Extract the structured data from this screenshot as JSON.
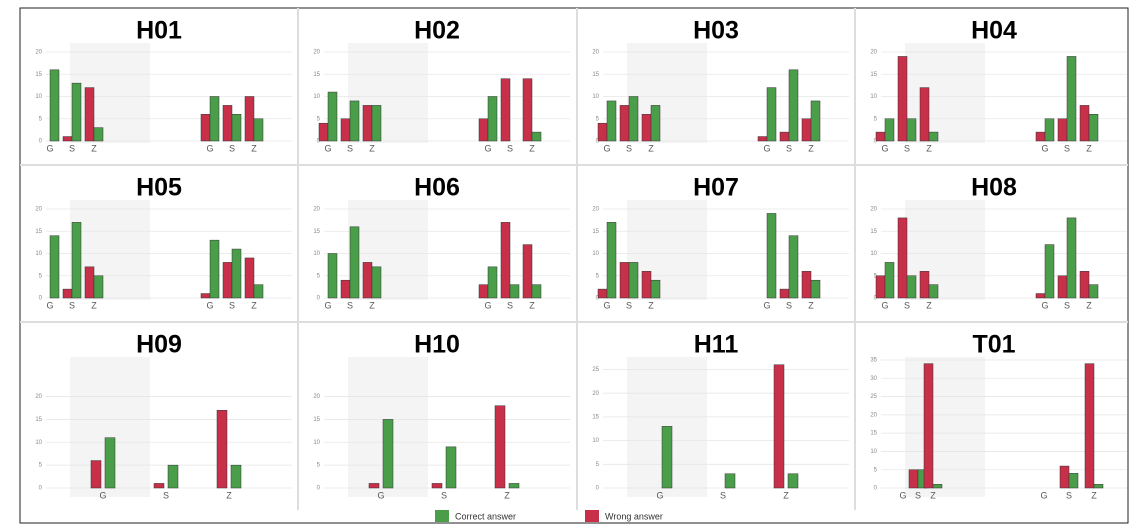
{
  "chart_data": [
    {
      "type": "bar",
      "title": "H01",
      "categories": [
        "G",
        "S",
        "Z",
        "G",
        "S",
        "Z"
      ],
      "ylim": [
        0,
        20
      ],
      "yticks": [
        0,
        5,
        10,
        15,
        20
      ],
      "grid": true,
      "series": [
        {
          "name": "Wrong answer",
          "color": "#c8304a",
          "values": [
            0,
            1,
            12,
            6,
            8,
            10
          ]
        },
        {
          "name": "Correct answer",
          "color": "#4a9e4a",
          "values": [
            16,
            13,
            3,
            10,
            6,
            5
          ]
        }
      ]
    },
    {
      "type": "bar",
      "title": "H02",
      "categories": [
        "G",
        "S",
        "Z",
        "G",
        "S",
        "Z"
      ],
      "ylim": [
        0,
        20
      ],
      "yticks": [
        0,
        5,
        10,
        15,
        20
      ],
      "grid": true,
      "series": [
        {
          "name": "Wrong answer",
          "color": "#c8304a",
          "values": [
            4,
            5,
            8,
            5,
            14,
            14
          ]
        },
        {
          "name": "Correct answer",
          "color": "#4a9e4a",
          "values": [
            11,
            9,
            8,
            10,
            0,
            2
          ]
        }
      ]
    },
    {
      "type": "bar",
      "title": "H03",
      "categories": [
        "G",
        "S",
        "Z",
        "G",
        "S",
        "Z"
      ],
      "ylim": [
        0,
        20
      ],
      "yticks": [
        0,
        5,
        10,
        15,
        20
      ],
      "grid": true,
      "series": [
        {
          "name": "Wrong answer",
          "color": "#c8304a",
          "values": [
            4,
            8,
            6,
            1,
            2,
            5
          ]
        },
        {
          "name": "Correct answer",
          "color": "#4a9e4a",
          "values": [
            9,
            10,
            8,
            12,
            16,
            9
          ]
        }
      ]
    },
    {
      "type": "bar",
      "title": "H04",
      "categories": [
        "G",
        "S",
        "Z",
        "G",
        "S",
        "Z"
      ],
      "ylim": [
        0,
        20
      ],
      "yticks": [
        0,
        5,
        10,
        15,
        20
      ],
      "grid": true,
      "series": [
        {
          "name": "Wrong answer",
          "color": "#c8304a",
          "values": [
            2,
            19,
            12,
            2,
            5,
            8
          ]
        },
        {
          "name": "Correct answer",
          "color": "#4a9e4a",
          "values": [
            5,
            5,
            2,
            5,
            19,
            6
          ]
        }
      ]
    },
    {
      "type": "bar",
      "title": "H05",
      "categories": [
        "G",
        "S",
        "Z",
        "G",
        "S",
        "Z"
      ],
      "ylim": [
        0,
        20
      ],
      "yticks": [
        0,
        5,
        10,
        15,
        20
      ],
      "grid": true,
      "series": [
        {
          "name": "Wrong answer",
          "color": "#c8304a",
          "values": [
            0,
            2,
            7,
            1,
            8,
            9
          ]
        },
        {
          "name": "Correct answer",
          "color": "#4a9e4a",
          "values": [
            14,
            17,
            5,
            13,
            11,
            3
          ]
        }
      ]
    },
    {
      "type": "bar",
      "title": "H06",
      "categories": [
        "G",
        "S",
        "Z",
        "G",
        "S",
        "Z"
      ],
      "ylim": [
        0,
        20
      ],
      "yticks": [
        0,
        5,
        10,
        15,
        20
      ],
      "grid": true,
      "series": [
        {
          "name": "Wrong answer",
          "color": "#c8304a",
          "values": [
            0,
            4,
            8,
            3,
            17,
            12
          ]
        },
        {
          "name": "Correct answer",
          "color": "#4a9e4a",
          "values": [
            10,
            16,
            7,
            7,
            3,
            3
          ]
        }
      ]
    },
    {
      "type": "bar",
      "title": "H07",
      "categories": [
        "G",
        "S",
        "Z",
        "G",
        "S",
        "Z"
      ],
      "ylim": [
        0,
        20
      ],
      "yticks": [
        0,
        5,
        10,
        15,
        20
      ],
      "grid": true,
      "series": [
        {
          "name": "Wrong answer",
          "color": "#c8304a",
          "values": [
            2,
            8,
            6,
            0,
            2,
            6
          ]
        },
        {
          "name": "Correct answer",
          "color": "#4a9e4a",
          "values": [
            17,
            8,
            4,
            19,
            14,
            4
          ]
        }
      ]
    },
    {
      "type": "bar",
      "title": "H08",
      "categories": [
        "G",
        "S",
        "Z",
        "G",
        "S",
        "Z"
      ],
      "ylim": [
        0,
        20
      ],
      "yticks": [
        0,
        5,
        10,
        15,
        20
      ],
      "grid": true,
      "series": [
        {
          "name": "Wrong answer",
          "color": "#c8304a",
          "values": [
            5,
            18,
            6,
            1,
            5,
            6
          ]
        },
        {
          "name": "Correct answer",
          "color": "#4a9e4a",
          "values": [
            8,
            5,
            3,
            12,
            18,
            3
          ]
        }
      ]
    },
    {
      "type": "bar",
      "title": "H09",
      "categories": [
        "G",
        "S",
        "Z"
      ],
      "ylim": [
        0,
        28
      ],
      "yticks": [
        0,
        5,
        10,
        15,
        20
      ],
      "grid": true,
      "series": [
        {
          "name": "Wrong answer",
          "color": "#c8304a",
          "values": [
            6,
            1,
            17
          ]
        },
        {
          "name": "Correct answer",
          "color": "#4a9e4a",
          "values": [
            11,
            5,
            5
          ]
        }
      ]
    },
    {
      "type": "bar",
      "title": "H10",
      "categories": [
        "G",
        "S",
        "Z"
      ],
      "ylim": [
        0,
        28
      ],
      "yticks": [
        0,
        5,
        10,
        15,
        20
      ],
      "grid": true,
      "series": [
        {
          "name": "Wrong answer",
          "color": "#c8304a",
          "values": [
            1,
            1,
            18
          ]
        },
        {
          "name": "Correct answer",
          "color": "#4a9e4a",
          "values": [
            15,
            9,
            1
          ]
        }
      ]
    },
    {
      "type": "bar",
      "title": "H11",
      "categories": [
        "G",
        "S",
        "Z"
      ],
      "ylim": [
        0,
        27
      ],
      "yticks": [
        0,
        5,
        10,
        15,
        20,
        25
      ],
      "grid": true,
      "series": [
        {
          "name": "Wrong answer",
          "color": "#c8304a",
          "values": [
            0,
            0,
            26
          ]
        },
        {
          "name": "Correct answer",
          "color": "#4a9e4a",
          "values": [
            13,
            3,
            3
          ]
        }
      ]
    },
    {
      "type": "bar",
      "title": "T01",
      "categories": [
        "G",
        "S",
        "Z",
        "G",
        "S",
        "Z"
      ],
      "ylim": [
        0,
        35
      ],
      "yticks": [
        0,
        5,
        10,
        15,
        20,
        25,
        30,
        35
      ],
      "grid": true,
      "series": [
        {
          "name": "Wrong answer",
          "color": "#c8304a",
          "values": [
            0,
            5,
            34,
            0,
            6,
            34
          ]
        },
        {
          "name": "Correct answer",
          "color": "#4a9e4a",
          "values": [
            0,
            5,
            1,
            0,
            4,
            1
          ]
        }
      ]
    }
  ]
}
